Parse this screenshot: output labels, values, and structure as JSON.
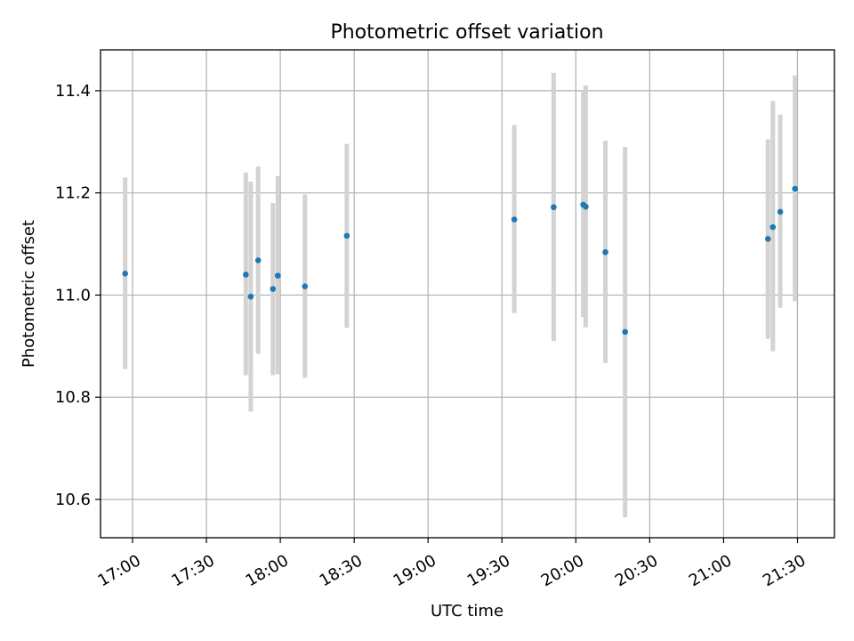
{
  "chart_data": {
    "type": "scatter",
    "title": "Photometric offset variation",
    "xlabel": "UTC time",
    "ylabel": "Photometric offset",
    "xlim": [
      "16:47",
      "21:45"
    ],
    "ylim": [
      10.525,
      11.48
    ],
    "grid": true,
    "x_ticks": [
      "17:00",
      "17:30",
      "18:00",
      "18:30",
      "19:00",
      "19:30",
      "20:00",
      "20:30",
      "21:00",
      "21:30"
    ],
    "y_ticks": [
      "10.6",
      "10.8",
      "11.0",
      "11.2",
      "11.4"
    ],
    "series": [
      {
        "marker_color": "#1f77b4",
        "errorbar_color": "#d3d3d3",
        "points": [
          {
            "x": "16:57",
            "y": 11.042,
            "ylow": 10.855,
            "yhigh": 11.23
          },
          {
            "x": "17:46",
            "y": 11.04,
            "ylow": 10.843,
            "yhigh": 11.24
          },
          {
            "x": "17:48",
            "y": 10.997,
            "ylow": 10.772,
            "yhigh": 11.222
          },
          {
            "x": "17:51",
            "y": 11.068,
            "ylow": 10.885,
            "yhigh": 11.252
          },
          {
            "x": "17:57",
            "y": 11.012,
            "ylow": 10.843,
            "yhigh": 11.18
          },
          {
            "x": "17:59",
            "y": 11.038,
            "ylow": 10.845,
            "yhigh": 11.233
          },
          {
            "x": "18:10",
            "y": 11.017,
            "ylow": 10.838,
            "yhigh": 11.197
          },
          {
            "x": "18:27",
            "y": 11.116,
            "ylow": 10.936,
            "yhigh": 11.296
          },
          {
            "x": "19:35",
            "y": 11.148,
            "ylow": 10.965,
            "yhigh": 11.333
          },
          {
            "x": "19:51",
            "y": 11.172,
            "ylow": 10.91,
            "yhigh": 11.435
          },
          {
            "x": "20:03",
            "y": 11.177,
            "ylow": 10.957,
            "yhigh": 11.4
          },
          {
            "x": "20:04",
            "y": 11.173,
            "ylow": 10.937,
            "yhigh": 11.41
          },
          {
            "x": "20:12",
            "y": 11.084,
            "ylow": 10.867,
            "yhigh": 11.302
          },
          {
            "x": "20:20",
            "y": 10.928,
            "ylow": 10.565,
            "yhigh": 11.29
          },
          {
            "x": "21:18",
            "y": 11.11,
            "ylow": 10.914,
            "yhigh": 11.305
          },
          {
            "x": "21:20",
            "y": 11.133,
            "ylow": 10.89,
            "yhigh": 11.38
          },
          {
            "x": "21:23",
            "y": 11.163,
            "ylow": 10.975,
            "yhigh": 11.353
          },
          {
            "x": "21:29",
            "y": 11.208,
            "ylow": 10.988,
            "yhigh": 11.43
          }
        ]
      }
    ]
  }
}
